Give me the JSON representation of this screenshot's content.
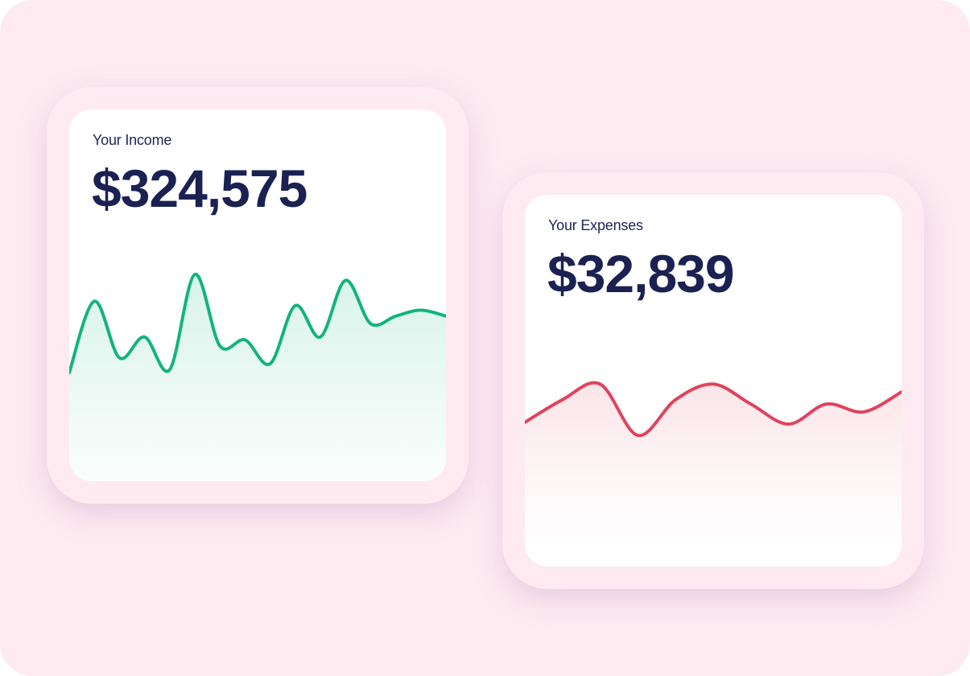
{
  "colors": {
    "background": "#fdebf1",
    "frame": "#fdebf1",
    "income_line": "#12b47c",
    "expense_line": "#e0435d",
    "text": "#1b2152"
  },
  "income": {
    "label": "Your Income",
    "amount": "$324,575"
  },
  "expenses": {
    "label": "Your Expenses",
    "amount": "$32,839"
  },
  "chart_data": [
    {
      "type": "area",
      "title": "",
      "trend": "income",
      "y": [
        34,
        82,
        44,
        58,
        36,
        100,
        52,
        56,
        40,
        79,
        58,
        96,
        67,
        72,
        76,
        72
      ]
    },
    {
      "type": "area",
      "title": "",
      "trend": "expenses",
      "y": [
        40,
        66,
        84,
        25,
        66,
        84,
        61,
        38,
        61,
        52,
        75
      ]
    }
  ]
}
